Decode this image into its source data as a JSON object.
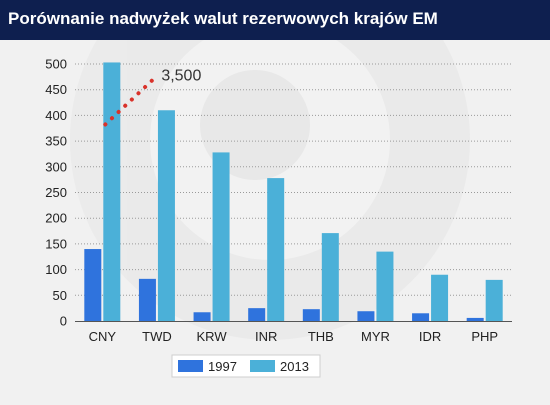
{
  "title": "Porównanie nadwyżek walut rezerwowych krajów EM",
  "chart_data": {
    "type": "bar",
    "title": "Porównanie nadwyżek walut rezerwowych krajów EM",
    "xlabel": "",
    "ylabel": "",
    "ylim": [
      0,
      500
    ],
    "yticks": [
      0,
      50,
      100,
      150,
      200,
      250,
      300,
      350,
      400,
      450,
      500
    ],
    "grid": true,
    "legend_position": "bottom",
    "categories": [
      "CNY",
      "TWD",
      "KRW",
      "INR",
      "THB",
      "MYR",
      "IDR",
      "PHP"
    ],
    "series": [
      {
        "name": "1997",
        "color": "#2f73dd",
        "values": [
          140,
          82,
          17,
          25,
          23,
          19,
          15,
          6
        ]
      },
      {
        "name": "2013",
        "color": "#4bb0d8",
        "values": [
          503,
          410,
          328,
          278,
          171,
          135,
          90,
          80
        ]
      }
    ],
    "annotations": [
      {
        "text": "3,500",
        "category": "CNY",
        "series": "2013",
        "note_color": "#d9322a"
      }
    ]
  }
}
